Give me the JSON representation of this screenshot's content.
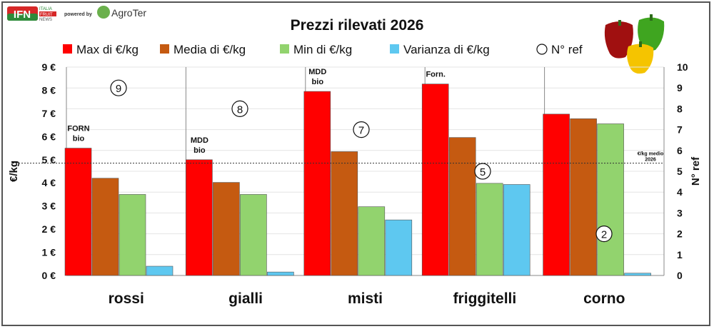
{
  "header": {
    "logo_text": "IFN",
    "logo_sub": [
      "ITALIA",
      "FRUIT",
      "NEWS"
    ],
    "powered_by": "powered by",
    "partner_logo": "AgroTer"
  },
  "chart_data": {
    "type": "bar",
    "title": "Prezzi rilevati 2026",
    "categories": [
      "rossi",
      "gialli",
      "misti",
      "friggitelli",
      "corno"
    ],
    "series": [
      {
        "name": "Max di €/kg",
        "color": "#ff0000",
        "values": [
          5.5,
          5.0,
          7.95,
          8.27,
          6.97
        ]
      },
      {
        "name": "Media di €/kg",
        "color": "#c55a11",
        "values": [
          4.2,
          4.02,
          5.35,
          5.96,
          6.77
        ]
      },
      {
        "name": "Min di €/kg",
        "color": "#92d36e",
        "values": [
          3.5,
          3.5,
          2.97,
          3.98,
          6.55
        ]
      },
      {
        "name": "Varianza di €/kg",
        "color": "#5ec8f0",
        "values": [
          0.4,
          0.15,
          2.4,
          3.93,
          0.1
        ]
      }
    ],
    "n_ref": {
      "name": "N° ref",
      "values": [
        9,
        8,
        7,
        5,
        2
      ]
    },
    "bar_annotations": [
      {
        "category": "rossi",
        "text": [
          "FORN",
          "bio"
        ]
      },
      {
        "category": "gialli",
        "text": [
          "MDD",
          "bio"
        ]
      },
      {
        "category": "misti",
        "text": [
          "MDD",
          "bio"
        ]
      },
      {
        "category": "friggitelli",
        "text": [
          "Forn."
        ]
      }
    ],
    "reference_line": {
      "value": 4.85,
      "label": [
        "€/kg medio",
        "2026"
      ]
    },
    "ylabel": "€/kg",
    "ylim": [
      0,
      9
    ],
    "yticks": [
      "0 €",
      "1 €",
      "2 €",
      "3 €",
      "4 €",
      "5 €",
      "6 €",
      "7 €",
      "8 €",
      "9 €"
    ],
    "y2label": "N° ref",
    "y2lim": [
      0,
      10
    ],
    "y2ticks": [
      "0",
      "1",
      "2",
      "3",
      "4",
      "5",
      "6",
      "7",
      "8",
      "9",
      "10"
    ],
    "grid": true,
    "legend": "top"
  }
}
